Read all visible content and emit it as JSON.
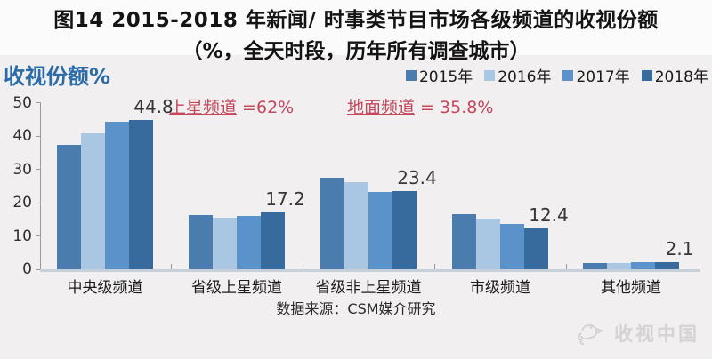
{
  "title": {
    "line1": "图14 2015-2018 年新闻/ 时事类节目市场各级频道的收视份额",
    "line2": "（%，全天时段，历年所有调查城市）"
  },
  "axis_title": {
    "text": "收视份额%",
    "color": "#2b6ba7"
  },
  "annotations": [
    {
      "term": "上星频道",
      "rest": " =62%",
      "color": "#c5475c",
      "x": 190
    },
    {
      "term": "地面频道",
      "rest": " = 35.8%",
      "color": "#c5475c",
      "x": 390
    }
  ],
  "source": "数据来源：CSM媒介研究",
  "watermark": "收视中国",
  "chart_data": {
    "type": "bar",
    "categories": [
      "中央级频道",
      "省级上星频道",
      "省级非上星频道",
      "市级频道",
      "其他频道"
    ],
    "series": [
      {
        "name": "2015年",
        "color": "#4a7dad",
        "values": [
          37.4,
          16.3,
          27.6,
          16.5,
          2.0
        ]
      },
      {
        "name": "2016年",
        "color": "#a9c6e3",
        "values": [
          40.8,
          15.6,
          26.2,
          15.3,
          1.8
        ]
      },
      {
        "name": "2017年",
        "color": "#5a92c9",
        "values": [
          44.4,
          16.0,
          23.2,
          13.5,
          2.2
        ]
      },
      {
        "name": "2018年",
        "color": "#376b9e",
        "values": [
          44.8,
          17.2,
          23.4,
          12.4,
          2.1
        ]
      }
    ],
    "value_labels_for_series": "2018年",
    "value_labels": [
      "44.8",
      "17.2",
      "23.4",
      "12.4",
      "2.1"
    ],
    "title": "收视份额%",
    "xlabel": "",
    "ylabel": "收视份额%",
    "ylim": [
      0,
      50
    ],
    "yticks": [
      0,
      10,
      20,
      30,
      40,
      50
    ],
    "grid": false,
    "legend_position": "top-right"
  }
}
